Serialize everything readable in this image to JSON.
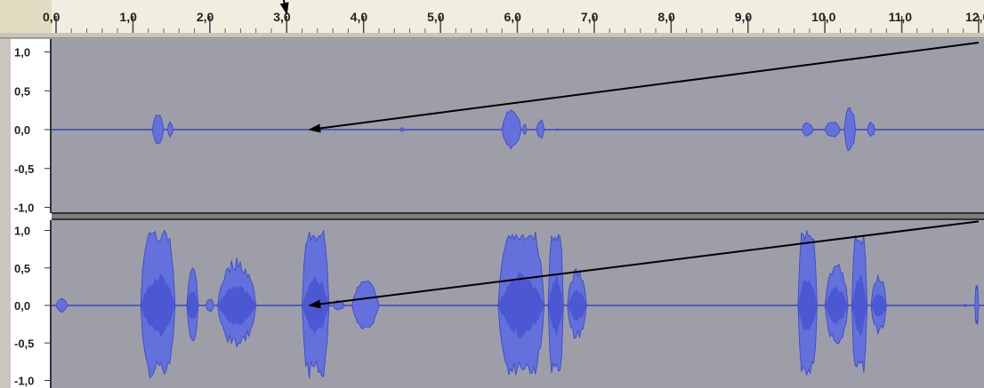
{
  "ruler": {
    "ticks": [
      {
        "value": 0.0,
        "label": "0,0"
      },
      {
        "value": 1.0,
        "label": "1,0"
      },
      {
        "value": 2.0,
        "label": "2,0"
      },
      {
        "value": 3.0,
        "label": "3,0"
      },
      {
        "value": 4.0,
        "label": "4,0"
      },
      {
        "value": 5.0,
        "label": "5,0"
      },
      {
        "value": 6.0,
        "label": "6,0"
      },
      {
        "value": 7.0,
        "label": "7,0"
      },
      {
        "value": 8.0,
        "label": "8,0"
      },
      {
        "value": 9.0,
        "label": "9,0"
      },
      {
        "value": 10.0,
        "label": "10,0"
      },
      {
        "value": 11.0,
        "label": "11,0"
      },
      {
        "value": 12.0,
        "label": "12,0"
      }
    ],
    "time_range_seconds": [
      0,
      12.0
    ]
  },
  "tracks": [
    {
      "amplitude_labels": [
        "1,0",
        "0,5",
        "0,0",
        "-0,5",
        "-1,0"
      ],
      "bursts": [
        {
          "start": 1.25,
          "end": 1.4,
          "amp": 0.22
        },
        {
          "start": 1.45,
          "end": 1.52,
          "amp": 0.1
        },
        {
          "start": 4.48,
          "end": 4.52,
          "amp": 0.03
        },
        {
          "start": 5.8,
          "end": 6.05,
          "amp": 0.28
        },
        {
          "start": 6.07,
          "end": 6.12,
          "amp": 0.07
        },
        {
          "start": 6.25,
          "end": 6.35,
          "amp": 0.14
        },
        {
          "start": 6.5,
          "end": 6.55,
          "amp": 0.01
        },
        {
          "start": 9.7,
          "end": 9.85,
          "amp": 0.1
        },
        {
          "start": 10.0,
          "end": 10.2,
          "amp": 0.12
        },
        {
          "start": 10.25,
          "end": 10.4,
          "amp": 0.3
        },
        {
          "start": 10.55,
          "end": 10.65,
          "amp": 0.1
        }
      ]
    },
    {
      "amplitude_labels": [
        "1,0",
        "0,5",
        "0,0",
        "-0,5",
        "-1,0"
      ],
      "bursts": [
        {
          "start": 0.0,
          "end": 0.15,
          "amp": 0.1
        },
        {
          "start": 1.1,
          "end": 1.55,
          "amp": 1.0
        },
        {
          "start": 1.7,
          "end": 1.85,
          "amp": 0.55
        },
        {
          "start": 1.95,
          "end": 2.05,
          "amp": 0.1
        },
        {
          "start": 2.1,
          "end": 2.6,
          "amp": 0.65
        },
        {
          "start": 3.2,
          "end": 3.55,
          "amp": 1.0
        },
        {
          "start": 3.6,
          "end": 3.75,
          "amp": 0.07
        },
        {
          "start": 3.85,
          "end": 4.2,
          "amp": 0.35
        },
        {
          "start": 5.75,
          "end": 6.35,
          "amp": 1.0
        },
        {
          "start": 6.4,
          "end": 6.6,
          "amp": 1.0
        },
        {
          "start": 6.65,
          "end": 6.9,
          "amp": 0.5
        },
        {
          "start": 9.65,
          "end": 9.9,
          "amp": 1.0
        },
        {
          "start": 10.0,
          "end": 10.3,
          "amp": 0.6
        },
        {
          "start": 10.35,
          "end": 10.55,
          "amp": 0.95
        },
        {
          "start": 10.6,
          "end": 10.8,
          "amp": 0.45
        },
        {
          "start": 11.8,
          "end": 11.85,
          "amp": 0.02
        },
        {
          "start": 11.95,
          "end": 12.0,
          "amp": 0.3
        }
      ]
    }
  ],
  "annotations": {
    "arrows": [
      {
        "from": {
          "time": 2.8,
          "amp": "ruler-top"
        },
        "to": {
          "time": 3.0,
          "amp": "ruler"
        }
      },
      {
        "from": {
          "time": 12.0,
          "track": 0,
          "amp": 1.0
        },
        "to": {
          "time": 3.3,
          "track": 0,
          "amp": 0.0
        }
      },
      {
        "from": {
          "time": 12.0,
          "track": 1,
          "amp": 1.0
        },
        "to": {
          "time": 3.3,
          "track": 1,
          "amp": 0.0
        }
      }
    ]
  },
  "colors": {
    "ruler_bg": "#f1eedf",
    "ruler_corner": "#e3dcc2",
    "track_bg": "#9e9ea8",
    "amp_bg": "#ffffff",
    "waveform": "#6470db",
    "waveform_dark": "#3746c9",
    "separator": "#7d7d7d",
    "separator_dark": "#444444",
    "arrow": "#000000"
  }
}
